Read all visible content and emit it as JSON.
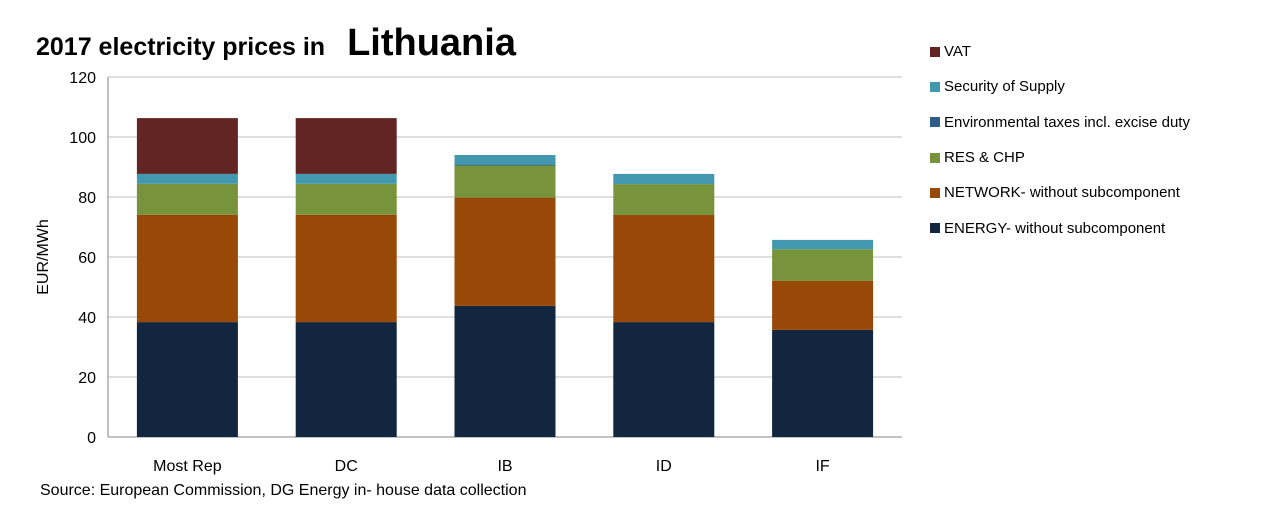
{
  "chart_data": {
    "type": "bar",
    "stacked": true,
    "title": "2017 electricity  prices in",
    "title_country": "Lithuania",
    "xlabel": "",
    "ylabel": "EUR/MWh",
    "ylim": [
      0,
      120
    ],
    "yticks": [
      0,
      20,
      40,
      60,
      80,
      100,
      120
    ],
    "grid": true,
    "legend_position": "right",
    "categories": [
      "Most Rep",
      "DC",
      "IB",
      "ID",
      "IF"
    ],
    "series": [
      {
        "name": "ENERGY- without subcomponent",
        "color": "#12263F",
        "values": [
          38.3,
          38.3,
          43.7,
          38.3,
          35.7
        ]
      },
      {
        "name": "NETWORK- without subcomponent",
        "color": "#984807",
        "values": [
          35.8,
          35.8,
          36.1,
          35.7,
          16.4
        ]
      },
      {
        "name": "RES & CHP",
        "color": "#77933C",
        "values": [
          10.3,
          10.3,
          10.7,
          10.3,
          10.5
        ]
      },
      {
        "name": "Environmental taxes incl. excise duty",
        "color": "#2E5D8A",
        "values": [
          0,
          0,
          0.3,
          0,
          0
        ]
      },
      {
        "name": "Security of Supply",
        "color": "#4198AF",
        "values": [
          3.3,
          3.3,
          3.2,
          3.4,
          3.1
        ]
      },
      {
        "name": "VAT",
        "color": "#632523",
        "values": [
          18.6,
          18.6,
          0,
          0,
          0
        ]
      }
    ],
    "source": "Source: European Commission, DG Energy in- house data collection"
  }
}
